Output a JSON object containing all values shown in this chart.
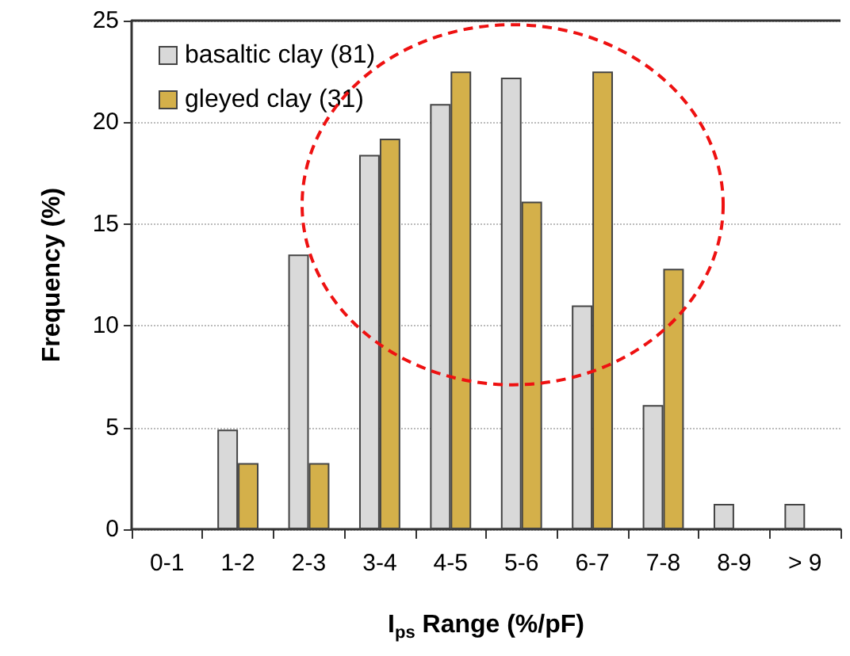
{
  "chart_data": {
    "type": "bar",
    "xlabel": "I$_{ps}$ Range (%/pF)",
    "ylabel": "Frequency (%)",
    "categories": [
      "0-1",
      "1-2",
      "2-3",
      "3-4",
      "4-5",
      "5-6",
      "6-7",
      "7-8",
      "8-9",
      "> 9"
    ],
    "series": [
      {
        "name": "basaltic clay (81)",
        "color": "#d9d9d9",
        "values": [
          0,
          4.9,
          13.5,
          18.4,
          20.9,
          22.2,
          11.0,
          6.1,
          1.25,
          1.25
        ]
      },
      {
        "name": "gleyed clay (31)",
        "color": "#d4b04a",
        "values": [
          0,
          3.25,
          3.25,
          19.2,
          22.5,
          16.1,
          22.5,
          12.8,
          0,
          0
        ]
      }
    ],
    "ylim": [
      0,
      25
    ],
    "yticks": [
      0,
      5,
      10,
      15,
      20,
      25
    ],
    "grid": "y",
    "legend": "top left"
  }
}
